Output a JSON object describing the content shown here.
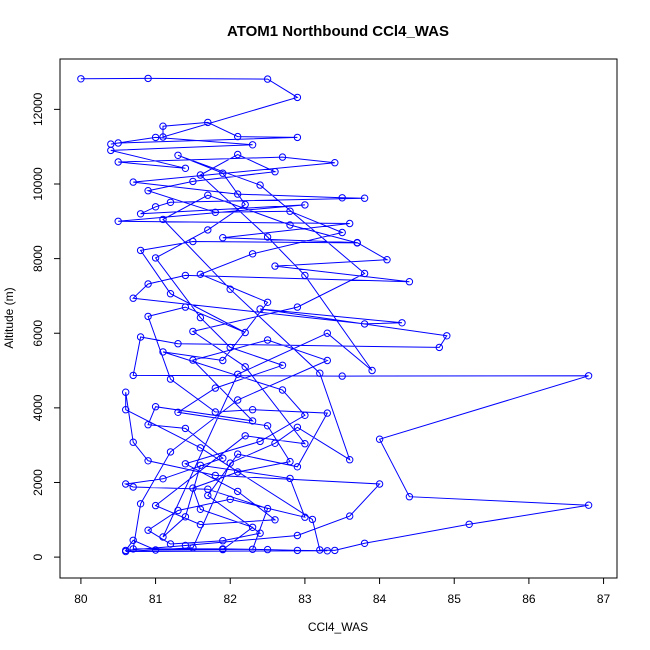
{
  "chart_data": {
    "type": "line",
    "title": "ATOM1 Northbound CCl4_WAS",
    "xlabel": "CCl4_WAS",
    "ylabel": "Altitude (m)",
    "xlim": [
      80,
      87
    ],
    "ylim": [
      0,
      12000
    ],
    "xticks": [
      "80",
      "81",
      "82",
      "83",
      "84",
      "85",
      "86",
      "87"
    ],
    "yticks": [
      "0",
      "2000",
      "4000",
      "6000",
      "8000",
      "10000",
      "12000"
    ],
    "series_color": "#0000ff",
    "markers": "open-circle",
    "series": [
      {
        "values": [
          [
            80.0,
            12820
          ],
          [
            80.9,
            12830
          ],
          [
            82.5,
            12810
          ],
          [
            82.9,
            12320
          ],
          [
            81.1,
            11260
          ],
          [
            81.1,
            11550
          ],
          [
            81.7,
            11650
          ],
          [
            82.1,
            11270
          ],
          [
            82.9,
            11250
          ],
          [
            80.5,
            11100
          ],
          [
            80.4,
            11070
          ],
          [
            81.0,
            11250
          ],
          [
            82.3,
            11050
          ],
          [
            80.4,
            10900
          ],
          [
            81.4,
            10420
          ],
          [
            80.5,
            10590
          ],
          [
            82.7,
            10720
          ],
          [
            83.4,
            10570
          ],
          [
            80.7,
            10050
          ],
          [
            82.1,
            9730
          ],
          [
            83.5,
            9630
          ],
          [
            83.8,
            9620
          ],
          [
            81.2,
            9510
          ],
          [
            81.0,
            9390
          ],
          [
            80.8,
            9200
          ],
          [
            83.0,
            9440
          ],
          [
            80.5,
            9000
          ],
          [
            83.6,
            8940
          ],
          [
            81.9,
            8560
          ],
          [
            83.7,
            8430
          ],
          [
            84.1,
            7970
          ],
          [
            82.6,
            7800
          ],
          [
            84.4,
            7380
          ],
          [
            81.4,
            7550
          ],
          [
            80.9,
            7320
          ],
          [
            80.7,
            6940
          ],
          [
            83.8,
            6250
          ],
          [
            84.3,
            6280
          ],
          [
            82.4,
            6650
          ],
          [
            84.9,
            5930
          ],
          [
            84.8,
            5620
          ],
          [
            81.3,
            5720
          ],
          [
            80.8,
            5900
          ],
          [
            80.7,
            4870
          ],
          [
            83.5,
            4850
          ],
          [
            86.8,
            4860
          ],
          [
            84.0,
            3160
          ],
          [
            84.4,
            1620
          ],
          [
            86.8,
            1390
          ],
          [
            85.2,
            880
          ],
          [
            83.8,
            370
          ],
          [
            83.4,
            180
          ],
          [
            83.2,
            190
          ],
          [
            83.1,
            1010
          ],
          [
            81.6,
            2930
          ],
          [
            80.6,
            3950
          ],
          [
            80.6,
            4420
          ],
          [
            80.7,
            3080
          ],
          [
            80.9,
            2580
          ],
          [
            81.8,
            2190
          ],
          [
            84.0,
            1960
          ],
          [
            83.6,
            1100
          ],
          [
            82.9,
            580
          ],
          [
            81.4,
            310
          ],
          [
            80.6,
            180
          ],
          [
            80.7,
            450
          ],
          [
            81.0,
            190
          ],
          [
            82.3,
            210
          ],
          [
            82.5,
            1300
          ],
          [
            81.7,
            1820
          ],
          [
            80.7,
            1880
          ],
          [
            80.6,
            1960
          ],
          [
            81.1,
            2100
          ],
          [
            81.9,
            2650
          ],
          [
            81.4,
            3450
          ],
          [
            80.9,
            3550
          ],
          [
            81.0,
            4030
          ],
          [
            82.3,
            3650
          ],
          [
            81.5,
            5280
          ],
          [
            82.5,
            5820
          ],
          [
            83.3,
            5270
          ],
          [
            82.1,
            4210
          ],
          [
            81.2,
            2820
          ],
          [
            80.8,
            1430
          ],
          [
            80.7,
            220
          ],
          [
            81.9,
            220
          ],
          [
            82.5,
            200
          ],
          [
            82.9,
            180
          ],
          [
            83.3,
            170
          ],
          [
            80.6,
            150
          ],
          [
            81.5,
            250
          ],
          [
            82.0,
            2520
          ],
          [
            82.6,
            3050
          ],
          [
            82.9,
            3480
          ],
          [
            83.6,
            2610
          ],
          [
            83.2,
            4930
          ],
          [
            82.0,
            7180
          ],
          [
            81.1,
            9050
          ],
          [
            81.7,
            9700
          ],
          [
            82.8,
            8900
          ],
          [
            83.7,
            8420
          ],
          [
            81.5,
            8460
          ],
          [
            80.8,
            8220
          ],
          [
            81.2,
            7060
          ],
          [
            82.2,
            6020
          ],
          [
            81.4,
            6700
          ],
          [
            80.9,
            6450
          ],
          [
            81.2,
            4770
          ],
          [
            81.8,
            3890
          ],
          [
            82.3,
            3950
          ],
          [
            83.3,
            3860
          ],
          [
            82.9,
            2420
          ],
          [
            82.1,
            2760
          ],
          [
            81.7,
            1650
          ],
          [
            82.4,
            640
          ],
          [
            81.9,
            440
          ],
          [
            81.2,
            350
          ],
          [
            80.9,
            720
          ],
          [
            81.3,
            1250
          ],
          [
            82.0,
            1550
          ],
          [
            83.0,
            1070
          ],
          [
            82.8,
            2110
          ],
          [
            81.6,
            2460
          ],
          [
            81.4,
            1080
          ],
          [
            81.1,
            540
          ],
          [
            82.1,
            4900
          ],
          [
            83.3,
            6000
          ],
          [
            83.9,
            5000
          ],
          [
            83.0,
            7550
          ],
          [
            82.5,
            8580
          ],
          [
            81.6,
            10240
          ],
          [
            82.1,
            10790
          ],
          [
            82.6,
            10330
          ],
          [
            81.5,
            10070
          ],
          [
            80.9,
            9820
          ],
          [
            81.8,
            9240
          ],
          [
            82.8,
            9270
          ],
          [
            83.5,
            8700
          ],
          [
            82.3,
            8130
          ],
          [
            81.6,
            7580
          ],
          [
            82.5,
            6830
          ],
          [
            81.9,
            5270
          ],
          [
            81.1,
            5500
          ],
          [
            82.7,
            4480
          ],
          [
            83.0,
            3800
          ],
          [
            82.4,
            3100
          ],
          [
            81.4,
            2500
          ],
          [
            82.1,
            1760
          ],
          [
            82.6,
            1000
          ],
          [
            81.6,
            870
          ],
          [
            81.0,
            1380
          ],
          [
            82.2,
            3250
          ],
          [
            83.0,
            3040
          ],
          [
            82.2,
            5100
          ],
          [
            81.5,
            6050
          ],
          [
            82.9,
            6700
          ],
          [
            83.8,
            7600
          ],
          [
            82.4,
            9970
          ],
          [
            81.3,
            10770
          ],
          [
            81.9,
            10290
          ],
          [
            82.2,
            9450
          ],
          [
            81.7,
            8770
          ],
          [
            81.0,
            8020
          ],
          [
            81.6,
            6420
          ],
          [
            82.0,
            5620
          ],
          [
            82.7,
            5140
          ],
          [
            81.8,
            4530
          ],
          [
            81.3,
            3880
          ],
          [
            82.5,
            3520
          ],
          [
            82.8,
            2560
          ],
          [
            82.1,
            2280
          ],
          [
            81.5,
            1850
          ],
          [
            81.6,
            1280
          ],
          [
            82.3,
            800
          ],
          [
            81.9,
            200
          ]
        ]
      }
    ]
  }
}
